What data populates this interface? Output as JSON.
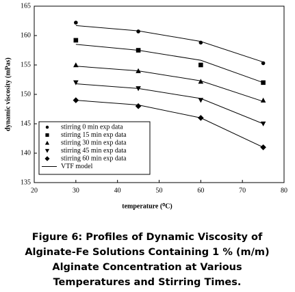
{
  "chart_data": {
    "type": "scatter",
    "caption": [
      "Figure 6: Profiles of Dynamic Viscosity of",
      "Alginate-Fe Solutions Containing 1 % (m/m)",
      "Alginate Concentration at Various",
      "Temperatures and Stirring Times."
    ],
    "x_label": "temperature (⁰C)",
    "y_label": "dynamic viscosity (mPas)",
    "x": [
      30,
      45,
      60,
      75
    ],
    "series": [
      {
        "name": "stirring 0 min exp data",
        "marker": "circle",
        "color": "#000000",
        "values": [
          162.2,
          160.7,
          158.8,
          155.3
        ]
      },
      {
        "name": "stirring 15 min exp data",
        "marker": "square",
        "color": "#000000",
        "values": [
          159.2,
          157.5,
          155.0,
          152.0
        ]
      },
      {
        "name": "stirring 30 min exp data",
        "marker": "triangle-up",
        "color": "#000000",
        "values": [
          155.0,
          154.0,
          152.2,
          149.0
        ]
      },
      {
        "name": "stirring 45 min exp data",
        "marker": "triangle-down",
        "color": "#000000",
        "values": [
          152.0,
          151.0,
          149.0,
          145.0
        ]
      },
      {
        "name": "stirring 60 min exp data",
        "marker": "diamond",
        "color": "#000000",
        "values": [
          149.0,
          148.0,
          146.0,
          141.0
        ]
      }
    ],
    "model": {
      "name": "VTF model",
      "color": "#000000",
      "lines": [
        [
          161.7,
          160.8,
          159.0,
          155.5
        ],
        [
          158.5,
          157.5,
          155.8,
          152.0
        ],
        [
          154.8,
          154.0,
          152.3,
          148.8
        ],
        [
          151.8,
          151.0,
          149.3,
          145.0
        ],
        [
          149.0,
          148.2,
          146.0,
          141.0
        ]
      ]
    },
    "xlim": [
      20,
      80
    ],
    "xticks": [
      20,
      30,
      40,
      50,
      60,
      70,
      80
    ],
    "ylim": [
      135,
      165
    ],
    "yticks": [
      135,
      140,
      145,
      150,
      155,
      160,
      165
    ],
    "legend": "lower left"
  }
}
